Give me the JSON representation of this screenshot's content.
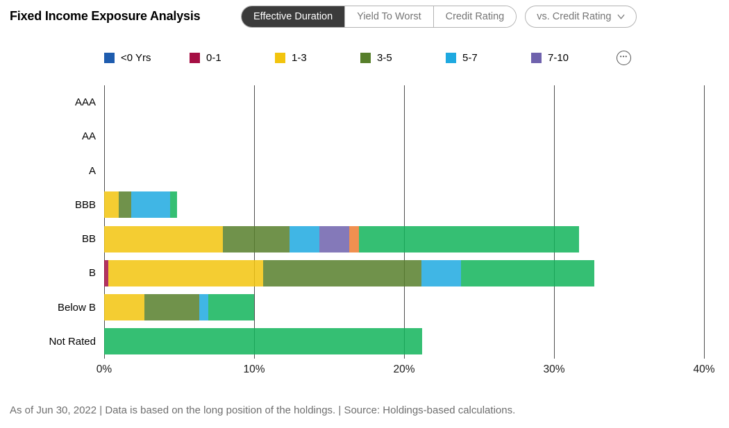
{
  "header": {
    "title": "Fixed Income Exposure Analysis",
    "tabs": [
      {
        "label": "Effective Duration",
        "selected": true
      },
      {
        "label": "Yield To Worst",
        "selected": false
      },
      {
        "label": "Credit Rating",
        "selected": false
      }
    ],
    "compare_dropdown": {
      "label": "vs. Credit Rating",
      "icon": "chevron-down-icon"
    }
  },
  "legend": {
    "items": [
      {
        "label": "<0 Yrs",
        "color": "#1E5CAE"
      },
      {
        "label": "0-1",
        "color": "#A50F44"
      },
      {
        "label": "1-3",
        "color": "#F2C40E"
      },
      {
        "label": "3-5",
        "color": "#577F2B"
      },
      {
        "label": "5-7",
        "color": "#1EA9E0"
      },
      {
        "label": "7-10",
        "color": "#6F62AD"
      }
    ],
    "more_icon": "ellipsis-circle-icon"
  },
  "chart_data": {
    "type": "bar",
    "orientation": "horizontal",
    "stacked": true,
    "grid": "vertical-lines",
    "bar_opacity": 0.85,
    "categories": [
      "AAA",
      "AA",
      "A",
      "BBB",
      "BB",
      "B",
      "Below B",
      "Not Rated"
    ],
    "series": [
      {
        "name": "<0 Yrs",
        "color": "#1E5CAE",
        "values": [
          0,
          0,
          0,
          0,
          0,
          0,
          0,
          0
        ]
      },
      {
        "name": "0-1",
        "color": "#A50F44",
        "values": [
          0,
          0,
          0,
          0,
          0,
          0.3,
          0,
          0
        ]
      },
      {
        "name": "1-3",
        "color": "#F2C40E",
        "values": [
          0,
          0,
          0,
          0.95,
          7.9,
          10.3,
          2.7,
          0
        ]
      },
      {
        "name": "3-5",
        "color": "#577F2B",
        "values": [
          0,
          0,
          0,
          0.85,
          4.45,
          10.55,
          3.65,
          0
        ]
      },
      {
        "name": "5-7",
        "color": "#1EA9E0",
        "values": [
          0,
          0,
          0,
          2.6,
          2.0,
          2.65,
          0.6,
          0
        ]
      },
      {
        "name": "7-10",
        "color": "#6F62AD",
        "values": [
          0,
          0,
          0,
          0,
          2.0,
          0,
          0,
          0
        ]
      },
      {
        "name": "(legend hidden behind more-button, orange)",
        "color": "#ED7D31",
        "values": [
          0,
          0,
          0,
          0,
          0.65,
          0,
          0,
          0
        ]
      },
      {
        "name": "(legend hidden behind more-button, green)",
        "color": "#12B45A",
        "values": [
          0,
          0,
          0,
          0.45,
          14.65,
          8.9,
          3.05,
          21.2
        ]
      }
    ],
    "xlim": [
      0,
      40
    ],
    "ticks": [
      {
        "value": 0,
        "label": "0%"
      },
      {
        "value": 10,
        "label": "10%"
      },
      {
        "value": 20,
        "label": "20%"
      },
      {
        "value": 30,
        "label": "30%"
      },
      {
        "value": 40,
        "label": "40%"
      }
    ],
    "xlabel": "",
    "ylabel": "",
    "title": "Fixed Income Exposure Analysis"
  },
  "footer": {
    "text": "As of Jun 30, 2022 | Data is based on the long position of the holdings. | Source: Holdings-based calculations."
  }
}
